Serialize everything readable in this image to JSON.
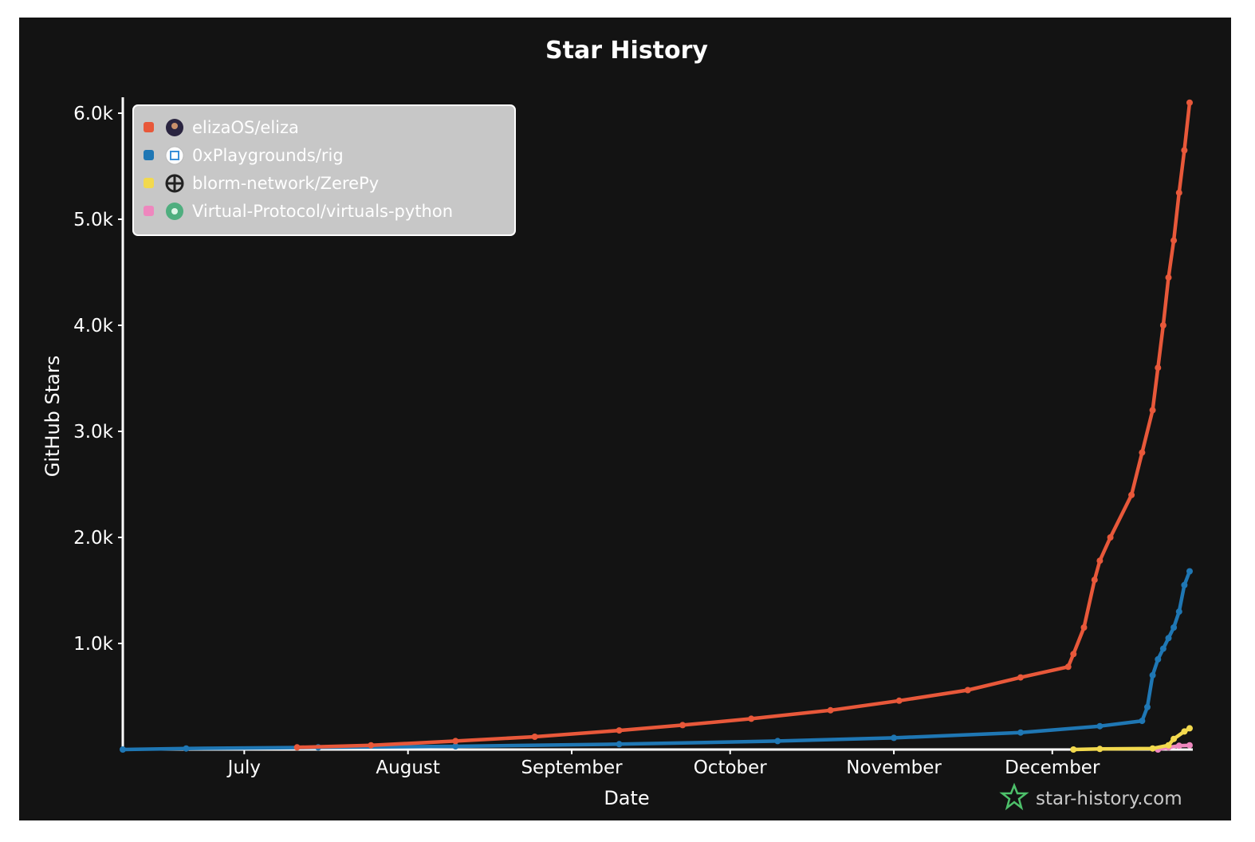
{
  "chart_data": {
    "type": "line",
    "title": "Star History",
    "xlabel": "Date",
    "ylabel": "GitHub Stars",
    "x_ticks": [
      "July",
      "August",
      "September",
      "October",
      "November",
      "December"
    ],
    "x_tick_dates": [
      "2024-07-01",
      "2024-08-01",
      "2024-09-01",
      "2024-10-01",
      "2024-11-01",
      "2024-12-01"
    ],
    "y_ticks": [
      "1.0k",
      "2.0k",
      "3.0k",
      "4.0k",
      "5.0k",
      "6.0k"
    ],
    "y_tick_values": [
      1000,
      2000,
      3000,
      4000,
      5000,
      6000
    ],
    "xlim": [
      "2024-06-08",
      "2024-12-27"
    ],
    "ylim": [
      0,
      6150
    ],
    "legend_position": "top-left",
    "watermark": "star-history.com",
    "series": [
      {
        "name": "elizaOS/eliza",
        "color": "#e8583a",
        "icon": "avatar-icon",
        "points": [
          [
            "2024-07-11",
            20
          ],
          [
            "2024-07-25",
            40
          ],
          [
            "2024-08-10",
            80
          ],
          [
            "2024-08-25",
            120
          ],
          [
            "2024-09-10",
            180
          ],
          [
            "2024-09-22",
            230
          ],
          [
            "2024-10-05",
            290
          ],
          [
            "2024-10-20",
            370
          ],
          [
            "2024-11-02",
            460
          ],
          [
            "2024-11-15",
            560
          ],
          [
            "2024-11-25",
            680
          ],
          [
            "2024-12-04",
            780
          ],
          [
            "2024-12-05",
            900
          ],
          [
            "2024-12-07",
            1150
          ],
          [
            "2024-12-09",
            1600
          ],
          [
            "2024-12-10",
            1780
          ],
          [
            "2024-12-12",
            2000
          ],
          [
            "2024-12-16",
            2400
          ],
          [
            "2024-12-18",
            2800
          ],
          [
            "2024-12-20",
            3200
          ],
          [
            "2024-12-21",
            3600
          ],
          [
            "2024-12-22",
            4000
          ],
          [
            "2024-12-23",
            4450
          ],
          [
            "2024-12-24",
            4800
          ],
          [
            "2024-12-25",
            5250
          ],
          [
            "2024-12-26",
            5650
          ],
          [
            "2024-12-27",
            6100
          ]
        ]
      },
      {
        "name": "0xPlaygrounds/rig",
        "color": "#1f77b4",
        "icon": "rig-icon",
        "points": [
          [
            "2024-06-08",
            0
          ],
          [
            "2024-06-20",
            10
          ],
          [
            "2024-07-15",
            20
          ],
          [
            "2024-08-10",
            30
          ],
          [
            "2024-09-10",
            50
          ],
          [
            "2024-10-10",
            80
          ],
          [
            "2024-11-01",
            110
          ],
          [
            "2024-11-25",
            160
          ],
          [
            "2024-12-10",
            220
          ],
          [
            "2024-12-18",
            270
          ],
          [
            "2024-12-19",
            400
          ],
          [
            "2024-12-20",
            700
          ],
          [
            "2024-12-21",
            850
          ],
          [
            "2024-12-22",
            950
          ],
          [
            "2024-12-23",
            1050
          ],
          [
            "2024-12-24",
            1150
          ],
          [
            "2024-12-25",
            1300
          ],
          [
            "2024-12-26",
            1550
          ],
          [
            "2024-12-27",
            1680
          ]
        ]
      },
      {
        "name": "blorm-network/ZerePy",
        "color": "#f2d94e",
        "icon": "zerepy-icon",
        "points": [
          [
            "2024-12-05",
            0
          ],
          [
            "2024-12-10",
            5
          ],
          [
            "2024-12-20",
            10
          ],
          [
            "2024-12-23",
            40
          ],
          [
            "2024-12-24",
            100
          ],
          [
            "2024-12-26",
            170
          ],
          [
            "2024-12-27",
            200
          ]
        ]
      },
      {
        "name": "Virtual-Protocol/virtuals-python",
        "color": "#ee87be",
        "icon": "virtuals-icon",
        "points": [
          [
            "2024-12-21",
            0
          ],
          [
            "2024-12-23",
            20
          ],
          [
            "2024-12-25",
            35
          ],
          [
            "2024-12-27",
            40
          ]
        ]
      }
    ]
  }
}
